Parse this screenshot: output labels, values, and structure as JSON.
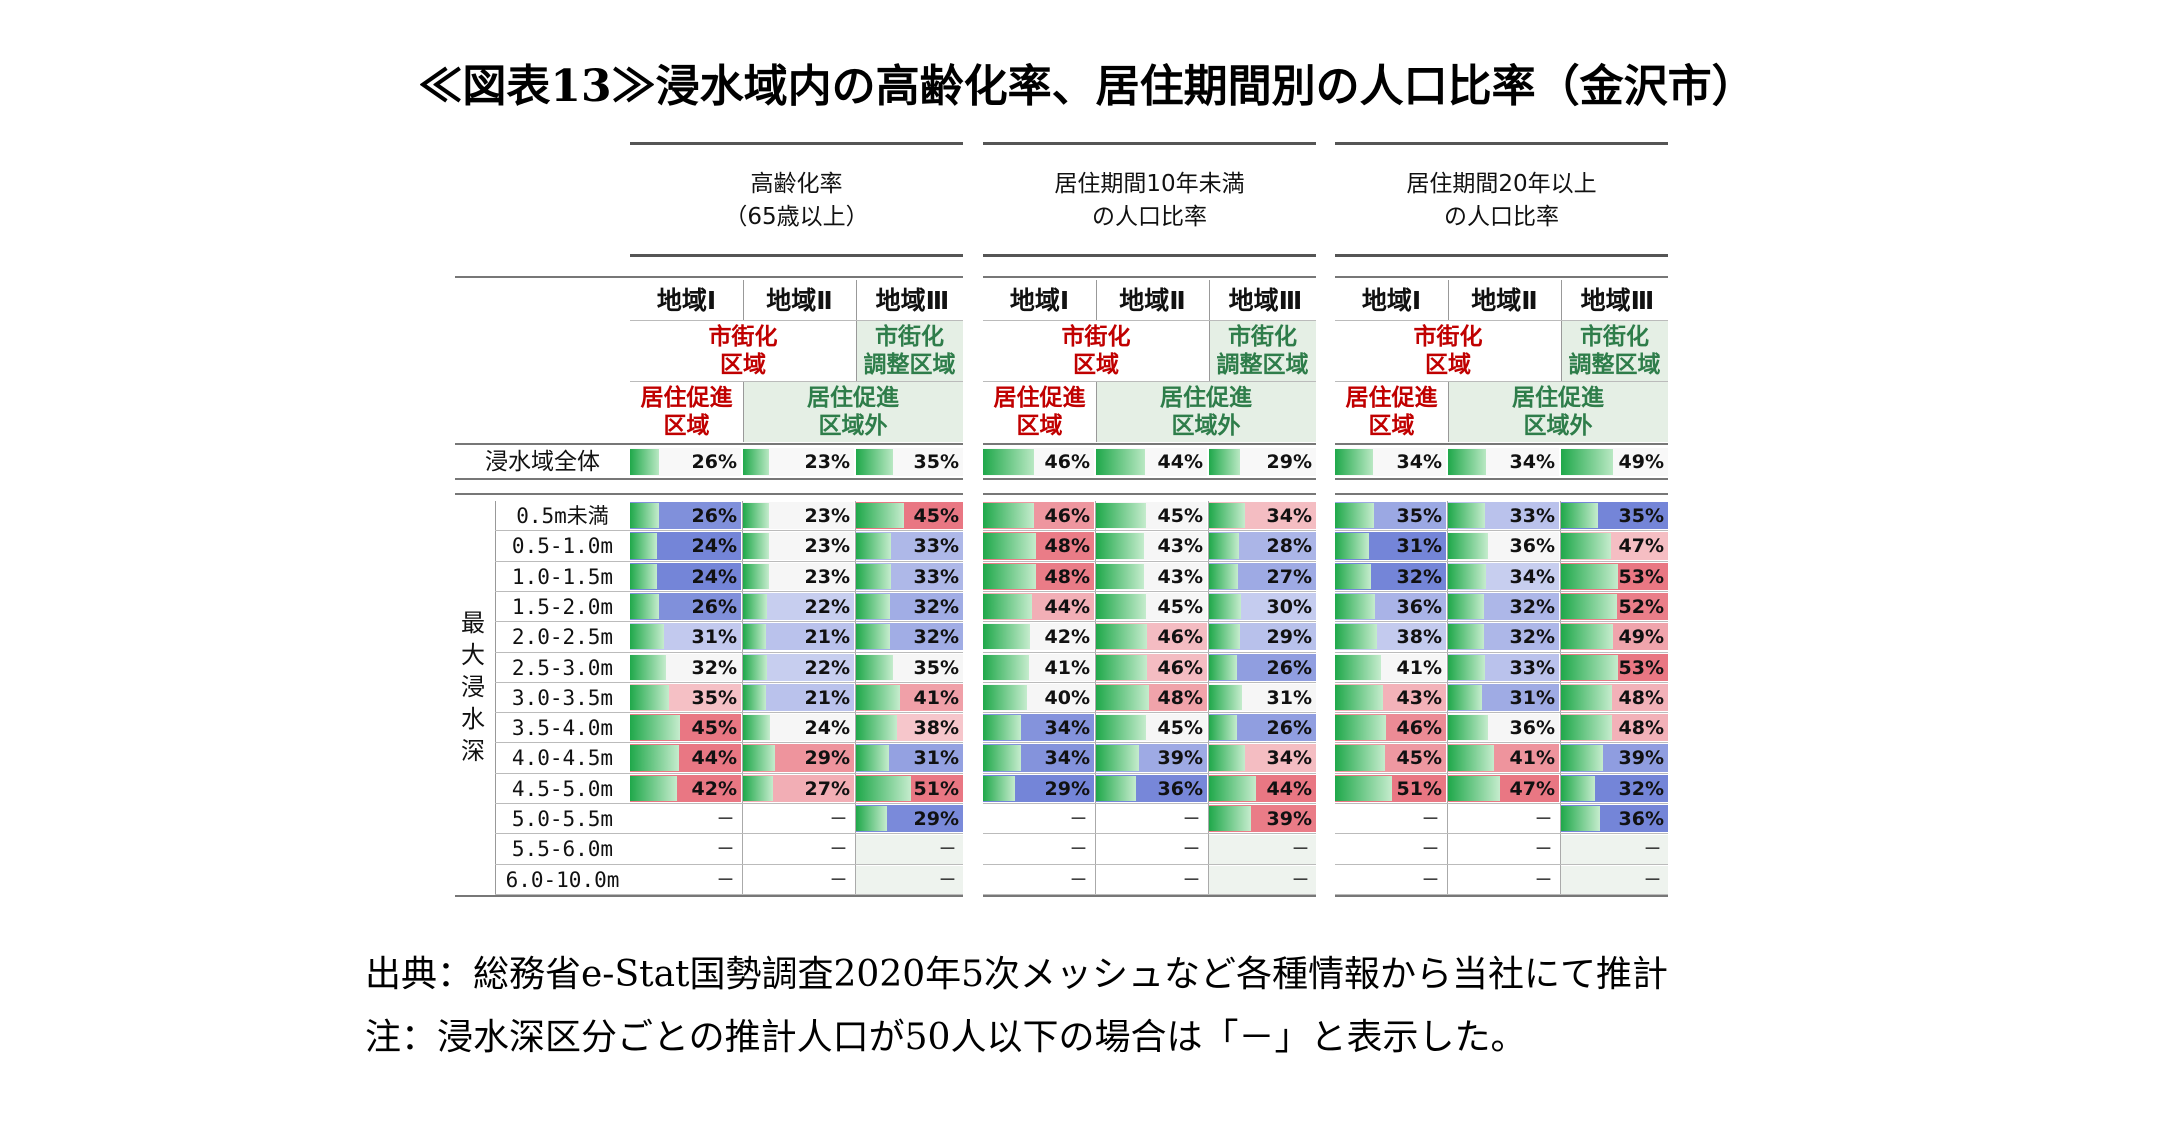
{
  "title": "≪図表13≫浸水域内の高齢化率、居住期間別の人口比率（金沢市）",
  "footnotes": {
    "source": "出典：総務省e-Stat国勢調査2020年5次メッシュなど各種情報から当社にて推計",
    "note": "注：浸水深区分ごとの推計人口が50人以下の場合は「－」と表示した。"
  },
  "chart_data": {
    "type": "table",
    "group_headers": [
      [
        "高齢化率",
        "（65歳以上）"
      ],
      [
        "居住期間10年未満",
        "の人口比率"
      ],
      [
        "居住期間20年以上",
        "の人口比率"
      ]
    ],
    "regions": [
      "地域Ⅰ",
      "地域Ⅱ",
      "地域Ⅲ"
    ],
    "zone_labels": {
      "shigaika": [
        "市街化",
        "区域"
      ],
      "chosei": [
        "市街化",
        "調整区域"
      ],
      "sokushin": [
        "居住促進",
        "区域"
      ],
      "sokushin_gai": [
        "居住促進",
        "区域外"
      ]
    },
    "total_row_label": "浸水域全体",
    "total_values": [
      [
        26,
        23,
        35
      ],
      [
        46,
        44,
        29
      ],
      [
        34,
        34,
        49
      ]
    ],
    "side_label": [
      "最",
      "大",
      "浸",
      "水",
      "深"
    ],
    "depth_labels": [
      "0.5m未満",
      "0.5-1.0m",
      "1.0-1.5m",
      "1.5-2.0m",
      "2.0-2.5m",
      "2.5-3.0m",
      "3.0-3.5m",
      "3.5-4.0m",
      "4.0-4.5m",
      "4.5-5.0m",
      "5.0-5.5m",
      "5.5-6.0m",
      "6.0-10.0m"
    ],
    "dash": "－",
    "unit": "%",
    "values": [
      [
        [
          26,
          23,
          45
        ],
        [
          24,
          23,
          33
        ],
        [
          24,
          23,
          33
        ],
        [
          26,
          22,
          32
        ],
        [
          31,
          21,
          32
        ],
        [
          32,
          22,
          35
        ],
        [
          35,
          21,
          41
        ],
        [
          45,
          24,
          38
        ],
        [
          44,
          29,
          31
        ],
        [
          42,
          27,
          51
        ],
        [
          null,
          null,
          29
        ],
        [
          null,
          null,
          null
        ],
        [
          null,
          null,
          null
        ]
      ],
      [
        [
          46,
          45,
          34
        ],
        [
          48,
          43,
          28
        ],
        [
          48,
          43,
          27
        ],
        [
          44,
          45,
          30
        ],
        [
          42,
          46,
          29
        ],
        [
          41,
          46,
          26
        ],
        [
          40,
          48,
          31
        ],
        [
          34,
          45,
          26
        ],
        [
          34,
          39,
          34
        ],
        [
          29,
          36,
          44
        ],
        [
          null,
          null,
          39
        ],
        [
          null,
          null,
          null
        ],
        [
          null,
          null,
          null
        ]
      ],
      [
        [
          35,
          33,
          35
        ],
        [
          31,
          36,
          47
        ],
        [
          32,
          34,
          53
        ],
        [
          36,
          32,
          52
        ],
        [
          38,
          32,
          49
        ],
        [
          41,
          33,
          53
        ],
        [
          43,
          31,
          48
        ],
        [
          46,
          36,
          48
        ],
        [
          45,
          41,
          39
        ],
        [
          51,
          47,
          32
        ],
        [
          null,
          null,
          36
        ],
        [
          null,
          null,
          null
        ],
        [
          null,
          null,
          null
        ]
      ]
    ],
    "colors": {
      "bar_green": "#1fa84a",
      "bg_red": "#e8707c",
      "bg_blue": "#6d7fd6",
      "header_green_bg": "#e5efe5"
    }
  }
}
